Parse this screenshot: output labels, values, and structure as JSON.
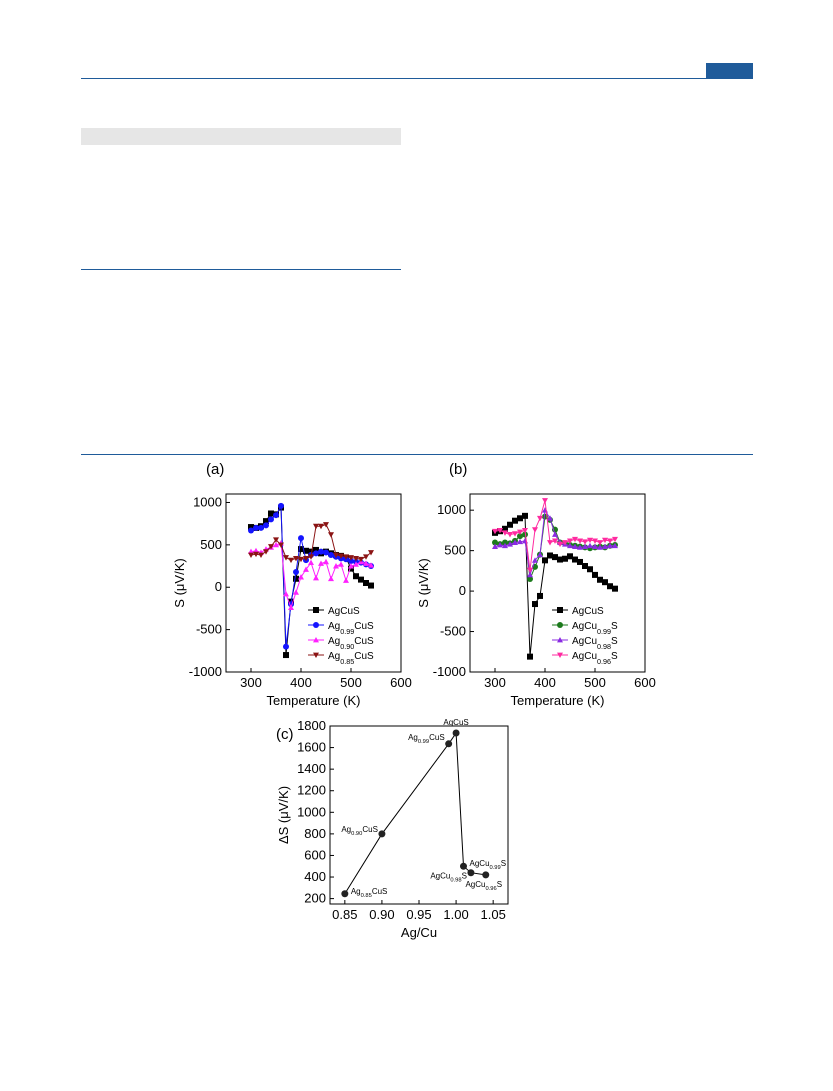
{
  "figure": {
    "panel_labels": [
      "(a)",
      "(b)",
      "(c)"
    ]
  },
  "chart_data": [
    {
      "type": "line",
      "xlabel": "Temperature (K)",
      "ylabel": "S (μV/K)",
      "xlim": [
        250,
        600
      ],
      "ylim": [
        -1000,
        1100
      ],
      "xticks": [
        300,
        400,
        500,
        600
      ],
      "yticks": [
        -1000,
        -500,
        0,
        500,
        1000
      ],
      "legend": "bottom-right",
      "series": [
        {
          "name": "AgCuS",
          "color": "#000000",
          "marker": "square",
          "x": [
            300,
            310,
            320,
            330,
            340,
            350,
            360,
            370,
            380,
            390,
            400,
            410,
            420,
            430,
            440,
            450,
            460,
            470,
            480,
            490,
            500,
            510,
            520,
            530,
            540
          ],
          "y": [
            710,
            700,
            720,
            780,
            870,
            860,
            940,
            -800,
            -170,
            100,
            450,
            430,
            420,
            440,
            400,
            420,
            400,
            380,
            370,
            350,
            220,
            130,
            90,
            50,
            20
          ]
        },
        {
          "name": "Ag0.99CuS",
          "color": "#1414ff",
          "marker": "circle",
          "x": [
            300,
            310,
            320,
            330,
            340,
            350,
            360,
            370,
            380,
            390,
            400,
            410,
            420,
            430,
            440,
            450,
            460,
            470,
            480,
            490,
            500,
            510,
            520,
            530,
            540
          ],
          "y": [
            670,
            700,
            700,
            730,
            800,
            850,
            960,
            -700,
            -200,
            180,
            580,
            320,
            380,
            400,
            420,
            410,
            380,
            360,
            340,
            330,
            310,
            300,
            290,
            270,
            250
          ]
        },
        {
          "name": "Ag0.90CuS",
          "color": "#ff22ff",
          "marker": "triangle-up",
          "x": [
            300,
            310,
            320,
            330,
            340,
            350,
            360,
            370,
            380,
            390,
            400,
            410,
            420,
            430,
            440,
            450,
            460,
            470,
            480,
            490,
            500,
            510,
            520,
            530,
            540
          ],
          "y": [
            420,
            430,
            410,
            450,
            470,
            500,
            520,
            -80,
            -240,
            -60,
            120,
            210,
            290,
            110,
            280,
            300,
            100,
            250,
            270,
            80,
            250,
            270,
            300,
            280,
            260
          ]
        },
        {
          "name": "Ag0.85CuS",
          "color": "#8b1414",
          "marker": "triangle-down",
          "x": [
            300,
            310,
            320,
            330,
            340,
            350,
            360,
            370,
            380,
            390,
            400,
            410,
            420,
            430,
            440,
            450,
            460,
            470,
            480,
            490,
            500,
            510,
            520,
            530,
            540
          ],
          "y": [
            380,
            390,
            380,
            420,
            480,
            560,
            500,
            350,
            320,
            340,
            330,
            340,
            360,
            720,
            720,
            740,
            620,
            380,
            370,
            360,
            350,
            340,
            330,
            360,
            410
          ]
        }
      ]
    },
    {
      "type": "line",
      "xlabel": "Temperature (K)",
      "ylabel": "S (μV/K)",
      "xlim": [
        250,
        600
      ],
      "ylim": [
        -1000,
        1200
      ],
      "xticks": [
        300,
        400,
        500,
        600
      ],
      "yticks": [
        -1000,
        -500,
        0,
        500,
        1000
      ],
      "legend": "bottom-right",
      "series": [
        {
          "name": "AgCuS",
          "color": "#000000",
          "marker": "square",
          "x": [
            300,
            310,
            320,
            330,
            340,
            350,
            360,
            370,
            380,
            390,
            400,
            410,
            420,
            430,
            440,
            450,
            460,
            470,
            480,
            490,
            500,
            510,
            520,
            530,
            540
          ],
          "y": [
            720,
            740,
            770,
            820,
            870,
            900,
            930,
            -810,
            -160,
            -60,
            380,
            440,
            420,
            390,
            400,
            430,
            390,
            360,
            310,
            270,
            200,
            140,
            110,
            60,
            30
          ]
        },
        {
          "name": "AgCu0.99S",
          "color": "#1c7a1c",
          "marker": "circle",
          "x": [
            300,
            310,
            320,
            330,
            340,
            350,
            360,
            370,
            380,
            390,
            400,
            410,
            420,
            430,
            440,
            450,
            460,
            470,
            480,
            490,
            500,
            510,
            520,
            530,
            540
          ],
          "y": [
            600,
            580,
            600,
            590,
            620,
            680,
            700,
            150,
            300,
            450,
            920,
            880,
            760,
            600,
            590,
            570,
            560,
            550,
            540,
            530,
            540,
            550,
            540,
            560,
            570
          ]
        },
        {
          "name": "AgCu0.98S",
          "color": "#8a2be2",
          "marker": "triangle-up",
          "x": [
            300,
            310,
            320,
            330,
            340,
            350,
            360,
            370,
            380,
            390,
            400,
            410,
            420,
            430,
            440,
            450,
            460,
            470,
            480,
            490,
            500,
            510,
            520,
            530,
            540
          ],
          "y": [
            550,
            570,
            560,
            580,
            600,
            610,
            620,
            200,
            380,
            450,
            1000,
            900,
            700,
            600,
            580,
            560,
            550,
            540,
            550,
            560,
            550,
            540,
            550,
            560,
            560
          ]
        },
        {
          "name": "AgCu0.96S",
          "color": "#ff2aa0",
          "marker": "triangle-down",
          "x": [
            300,
            310,
            320,
            330,
            340,
            350,
            360,
            370,
            380,
            390,
            400,
            410,
            420,
            430,
            440,
            450,
            460,
            470,
            480,
            490,
            500,
            510,
            520,
            530,
            540
          ],
          "y": [
            740,
            750,
            720,
            700,
            710,
            730,
            750,
            260,
            760,
            900,
            1120,
            600,
            620,
            580,
            600,
            620,
            640,
            620,
            610,
            630,
            620,
            600,
            630,
            620,
            640
          ]
        }
      ]
    },
    {
      "type": "scatter",
      "xlabel": "Ag/Cu",
      "ylabel": "ΔS (μV/K)",
      "xlim": [
        0.83,
        1.07
      ],
      "ylim": [
        150,
        1800
      ],
      "xticks": [
        0.85,
        0.9,
        0.95,
        1.0,
        1.05
      ],
      "yticks": [
        200,
        400,
        600,
        800,
        1000,
        1200,
        1400,
        1600,
        1800
      ],
      "points": [
        {
          "label": "Ag0.85CuS",
          "x": 0.85,
          "y": 245
        },
        {
          "label": "Ag0.90CuS",
          "x": 0.9,
          "y": 800
        },
        {
          "label": "Ag0.99CuS",
          "x": 0.99,
          "y": 1635
        },
        {
          "label": "AgCuS",
          "x": 1.0,
          "y": 1735
        },
        {
          "label": "AgCu0.99S",
          "x": 1.01,
          "y": 500
        },
        {
          "label": "AgCu0.98S",
          "x": 1.02,
          "y": 440
        },
        {
          "label": "AgCu0.96S",
          "x": 1.04,
          "y": 420
        }
      ]
    }
  ]
}
